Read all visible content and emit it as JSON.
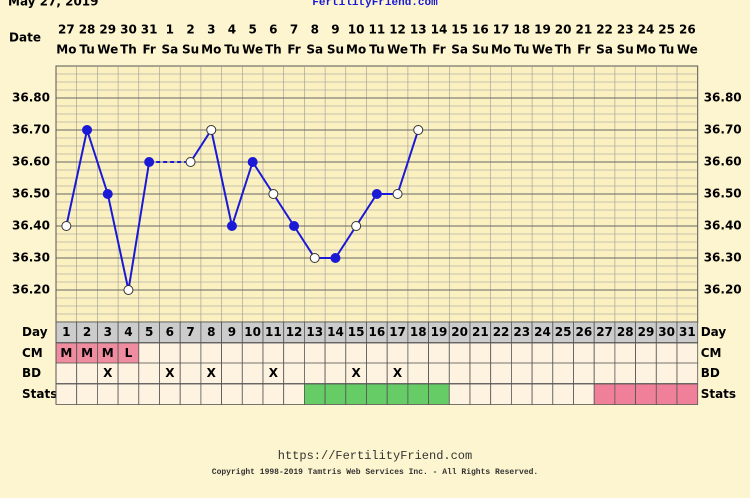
{
  "chart_data": {
    "type": "line",
    "title": "May 27, 2019",
    "subtitle": "FertilityFriend.com",
    "date_label": "Date",
    "dates": [
      "27",
      "28",
      "29",
      "30",
      "31",
      "1",
      "2",
      "3",
      "4",
      "5",
      "6",
      "7",
      "8",
      "9",
      "10",
      "11",
      "12",
      "13",
      "14",
      "15",
      "16",
      "17",
      "18",
      "19",
      "20",
      "21",
      "22",
      "23",
      "24",
      "25",
      "26"
    ],
    "weekdays": [
      "Mo",
      "Tu",
      "We",
      "Th",
      "Fr",
      "Sa",
      "Su",
      "Mo",
      "Tu",
      "We",
      "Th",
      "Fr",
      "Sa",
      "Su",
      "Mo",
      "Tu",
      "We",
      "Th",
      "Fr",
      "Sa",
      "Su",
      "Mo",
      "Tu",
      "We",
      "Th",
      "Fr",
      "Sa",
      "Su",
      "Mo",
      "Tu",
      "We"
    ],
    "values": [
      36.4,
      36.7,
      36.5,
      36.2,
      36.6,
      null,
      36.6,
      36.7,
      36.4,
      36.6,
      36.5,
      36.4,
      36.3,
      36.3,
      36.4,
      36.5,
      36.5,
      36.7,
      null,
      null,
      null,
      null,
      null,
      null,
      null,
      null,
      null,
      null,
      null,
      null,
      null
    ],
    "markers": [
      "open",
      "filled",
      "filled",
      "open",
      "filled",
      null,
      "open",
      "open",
      "filled",
      "filled",
      "open",
      "filled",
      "open",
      "filled",
      "open",
      "filled",
      "open",
      "open",
      null,
      null,
      null,
      null,
      null,
      null,
      null,
      null,
      null,
      null,
      null,
      null,
      null
    ],
    "color": "#1a1ad6",
    "ylim": [
      36.1,
      36.9
    ],
    "yticks": [
      {
        "value": 36.8,
        "label": "36.80"
      },
      {
        "value": 36.7,
        "label": "36.70"
      },
      {
        "value": 36.6,
        "label": "36.60"
      },
      {
        "value": 36.5,
        "label": "36.50"
      },
      {
        "value": 36.4,
        "label": "36.40"
      },
      {
        "value": 36.3,
        "label": "36.30"
      },
      {
        "value": 36.2,
        "label": "36.20"
      }
    ],
    "grid": true,
    "day_label": "Day",
    "days": [
      1,
      2,
      3,
      4,
      5,
      6,
      7,
      8,
      9,
      10,
      11,
      12,
      13,
      14,
      15,
      16,
      17,
      18,
      19,
      20,
      21,
      22,
      23,
      24,
      25,
      26,
      27,
      28,
      29,
      30,
      31
    ],
    "cm_label": "CM",
    "cm": [
      "M",
      "M",
      "M",
      "L",
      null,
      null,
      null,
      null,
      null,
      null,
      null,
      null,
      null,
      null,
      null,
      null,
      null,
      null,
      null,
      null,
      null,
      null,
      null,
      null,
      null,
      null,
      null,
      null,
      null,
      null,
      null
    ],
    "cm_color": "#f08ca0",
    "bd_label": "BD",
    "bd": [
      null,
      null,
      "X",
      null,
      null,
      "X",
      null,
      "X",
      null,
      null,
      "X",
      null,
      null,
      null,
      "X",
      null,
      "X",
      null,
      null,
      null,
      null,
      null,
      null,
      null,
      null,
      null,
      null,
      null,
      null,
      null,
      null
    ],
    "stats_label": "Stats",
    "stats_colors": [
      null,
      null,
      null,
      null,
      null,
      null,
      null,
      null,
      null,
      null,
      null,
      null,
      "#66cc66",
      "#66cc66",
      "#66cc66",
      "#66cc66",
      "#66cc66",
      "#66cc66",
      "#66cc66",
      null,
      null,
      null,
      null,
      null,
      null,
      null,
      "#f0809a",
      "#f0809a",
      "#f0809a",
      "#f0809a",
      "#f0809a"
    ],
    "footer_url": "https://FertilityFriend.com",
    "copyright": "Copyright 1998-2019 Tamtris Web Services Inc. - All Rights Reserved."
  }
}
